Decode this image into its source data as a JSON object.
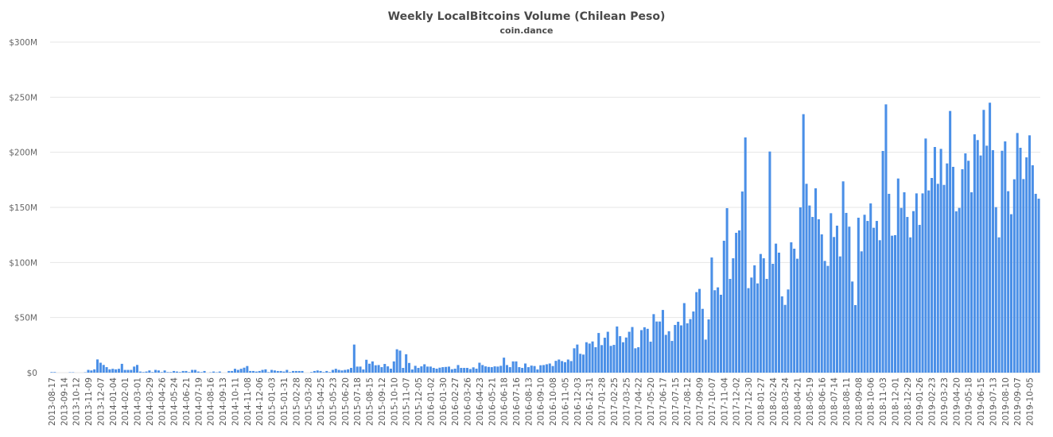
{
  "chart_data": {
    "type": "bar",
    "title": "Weekly LocalBitcoins Volume (Chilean Peso)",
    "subtitle": "coin.dance",
    "xlabel": "",
    "ylabel": "",
    "ylim": [
      0,
      300
    ],
    "y_unit": "million CLP",
    "y_ticks": [
      "$0",
      "$50M",
      "$100M",
      "$150M",
      "$200M",
      "$250M",
      "$300M"
    ],
    "grid": true,
    "bar_color": "#4a8fe7",
    "tick_every_n_bars": 4,
    "x_tick_labels": [
      "2013-08-17",
      "2013-09-14",
      "2013-10-12",
      "2013-11-09",
      "2013-12-07",
      "2014-01-04",
      "2014-02-01",
      "2014-03-01",
      "2014-03-29",
      "2014-04-26",
      "2014-05-24",
      "2014-06-21",
      "2014-07-19",
      "2014-08-16",
      "2014-09-13",
      "2014-10-11",
      "2014-11-08",
      "2014-12-06",
      "2015-01-03",
      "2015-01-31",
      "2015-02-28",
      "2015-03-28",
      "2015-04-25",
      "2015-05-23",
      "2015-06-20",
      "2015-07-18",
      "2015-08-15",
      "2015-09-12",
      "2015-10-10",
      "2015-11-07",
      "2015-12-05",
      "2016-01-02",
      "2016-01-30",
      "2016-02-27",
      "2016-03-26",
      "2016-04-23",
      "2016-05-21",
      "2016-06-18",
      "2016-07-16",
      "2016-08-13",
      "2016-09-10",
      "2016-10-08",
      "2016-11-05",
      "2016-12-03",
      "2016-12-31",
      "2017-01-28",
      "2017-02-25",
      "2017-03-25",
      "2017-04-22",
      "2017-05-20",
      "2017-06-17",
      "2017-07-15",
      "2017-08-12",
      "2017-09-09",
      "2017-10-07",
      "2017-11-04",
      "2017-12-02",
      "2017-12-30",
      "2018-01-27",
      "2018-02-24",
      "2018-03-24",
      "2018-04-21",
      "2018-05-19",
      "2018-06-16",
      "2018-07-14",
      "2018-08-11",
      "2018-09-08",
      "2018-10-06",
      "2018-11-03",
      "2018-12-01",
      "2018-12-29",
      "2019-01-26",
      "2019-02-23",
      "2019-03-23",
      "2019-04-20",
      "2019-05-18",
      "2019-06-15",
      "2019-07-13",
      "2019-08-10",
      "2019-09-07",
      "2019-10-05"
    ],
    "values": [
      0.5,
      0.5,
      0,
      0,
      0,
      0,
      0.3,
      0.3,
      0,
      0,
      0,
      0.3,
      2.5,
      2,
      3,
      12,
      9,
      7,
      5,
      3,
      3.5,
      3,
      3.5,
      8,
      2.5,
      2.5,
      2.5,
      5.5,
      7,
      1,
      0.5,
      1,
      2,
      0.5,
      2.5,
      2,
      0.5,
      2,
      0.5,
      0.5,
      1.5,
      1,
      0.5,
      1.5,
      1.5,
      0.5,
      2.5,
      2.5,
      1,
      0.5,
      1.5,
      0,
      0.3,
      1,
      0.3,
      1,
      0,
      0,
      1.5,
      1.5,
      3.5,
      2.5,
      3.5,
      4.5,
      6,
      1.5,
      1.5,
      1,
      1.5,
      2.5,
      3,
      0.5,
      2.5,
      2,
      1.5,
      1.5,
      1,
      2.5,
      0.5,
      1.5,
      1.5,
      1.5,
      1.5,
      0,
      0,
      0.5,
      1.5,
      2,
      1.5,
      0.5,
      1.5,
      0.5,
      2.5,
      3.5,
      2.5,
      2,
      2.5,
      3,
      4.3,
      25.5,
      5.5,
      5.5,
      2.9,
      11.7,
      8.1,
      10.2,
      6.7,
      6.9,
      5.0,
      7.9,
      5.7,
      3.6,
      10.2,
      21.2,
      20.0,
      4.3,
      16.7,
      8.8,
      2.9,
      6.2,
      4.3,
      5.7,
      7.6,
      5.5,
      5.5,
      4.3,
      3.6,
      4.5,
      5.0,
      5.2,
      5.5,
      3.1,
      3.6,
      6.9,
      4.3,
      4.3,
      4.3,
      3.3,
      4.8,
      3.6,
      9.0,
      6.9,
      5.7,
      5.2,
      5.0,
      5.7,
      5.5,
      6.2,
      13.6,
      6.9,
      5.0,
      10.2,
      10.2,
      5.0,
      4.3,
      8.3,
      5.0,
      6.4,
      6.0,
      2.9,
      6.7,
      6.9,
      7.6,
      8.3,
      6.0,
      10.7,
      11.9,
      10.5,
      9.5,
      11.9,
      10.5,
      22.1,
      25.5,
      17.1,
      16.4,
      27.6,
      26.4,
      28.3,
      23.1,
      36.0,
      25.0,
      31.7,
      37.1,
      24.3,
      25.2,
      41.9,
      33.1,
      27.6,
      31.9,
      37.1,
      41.4,
      22.1,
      23.1,
      38.6,
      41.2,
      39.8,
      28.1,
      53.1,
      46.4,
      46.4,
      56.9,
      34.3,
      37.6,
      28.8,
      43.3,
      46.2,
      42.9,
      63.1,
      44.8,
      48.6,
      55.5,
      73.1,
      76.0,
      57.9,
      30.0,
      48.3,
      104.5,
      74.8,
      77.4,
      70.7,
      119.7,
      149.3,
      85.1,
      103.8,
      126.9,
      129.1,
      164.4,
      213.5,
      76.7,
      86.3,
      97.4,
      81.0,
      107.7,
      103.8,
      85.1,
      200.7,
      98.8,
      117.1,
      108.9,
      69.2,
      61.5,
      75.5,
      118.3,
      112.5,
      103.4,
      150.0,
      234.6,
      171.4,
      151.7,
      141.3,
      167.3,
      139.2,
      125.5,
      101.4,
      96.9,
      144.7,
      123.1,
      133.4,
      105.5,
      173.6,
      145.0,
      132.5,
      82.7,
      61.3,
      140.6,
      110.1,
      143.3,
      137.7,
      153.6,
      131.5,
      137.7,
      120.2,
      201.2,
      243.5,
      162.3,
      124.3,
      124.8,
      176.2,
      149.5,
      163.7,
      141.3,
      122.8,
      146.6,
      162.7,
      134.1,
      162.7,
      212.5,
      165.4,
      176.7,
      204.8,
      171.4,
      203.1,
      170.4,
      189.9,
      237.5,
      186.8,
      146.4,
      149.5,
      184.6,
      199.0,
      192.3,
      163.7,
      216.3,
      211.1,
      197.1,
      238.5,
      206.0,
      245.0,
      201.9,
      150.2,
      122.8,
      201.4,
      209.9,
      164.7,
      143.8,
      175.5,
      217.5,
      204.1,
      175.7,
      195.4,
      215.4,
      188.2,
      162.3,
      157.9
    ]
  }
}
